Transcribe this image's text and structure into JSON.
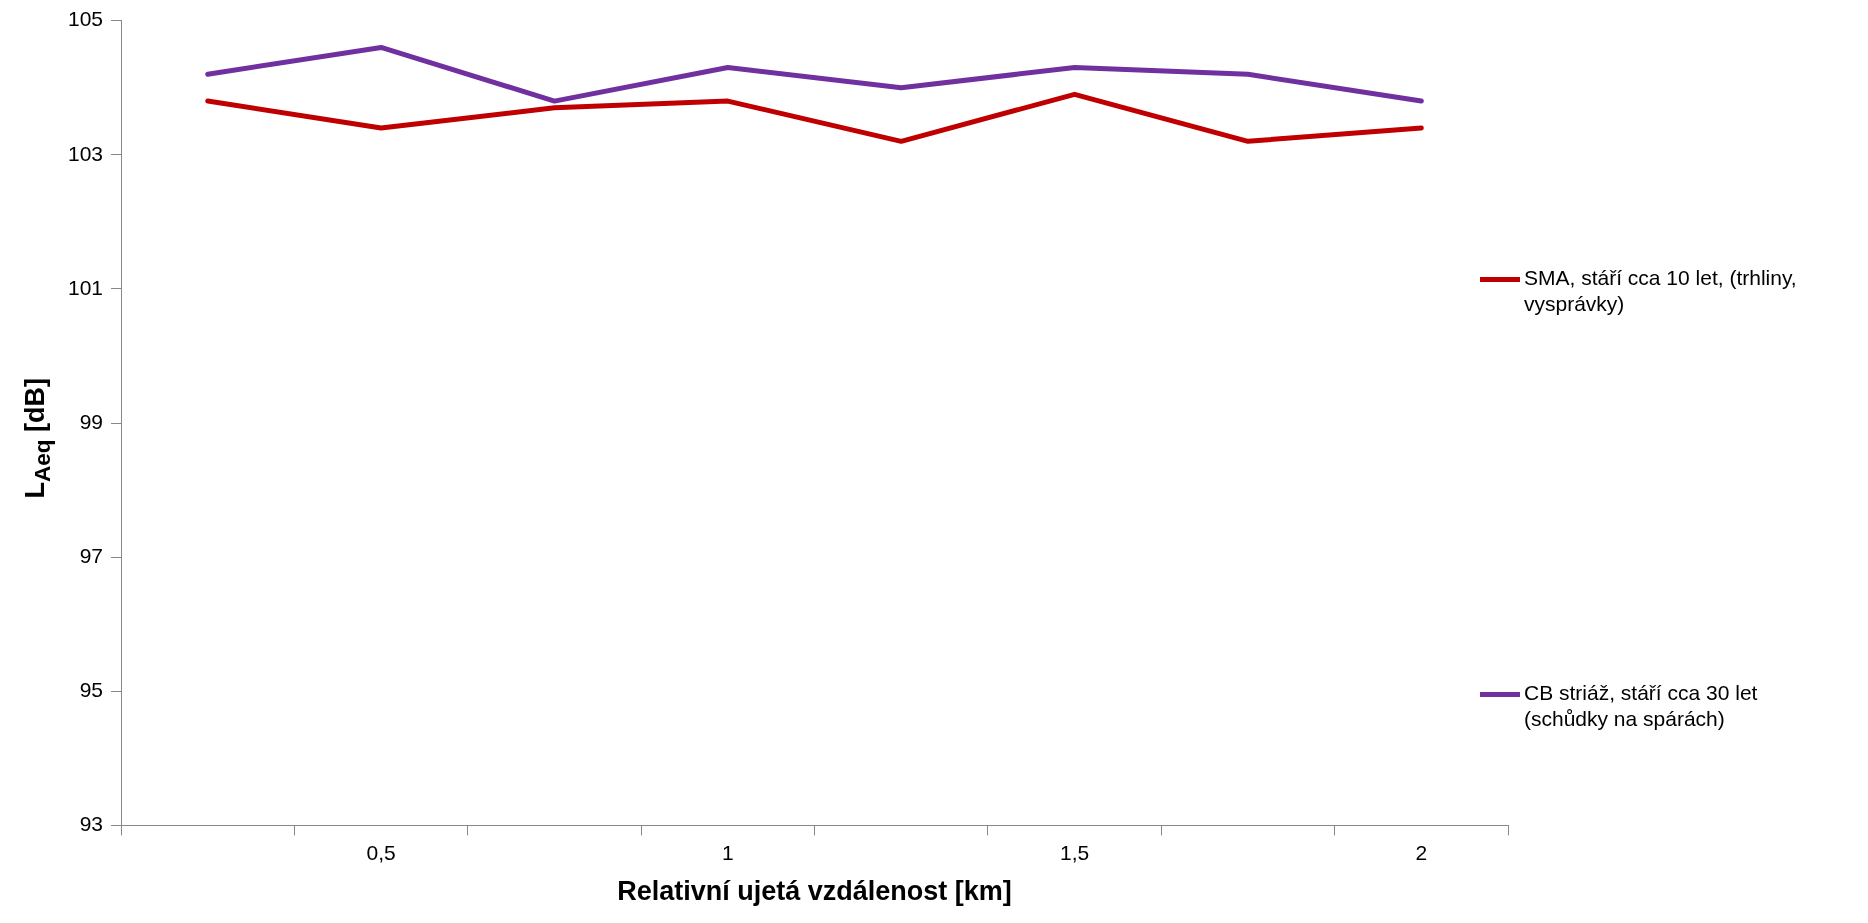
{
  "chart_data": {
    "type": "line",
    "xlabel": "Relativní ujetá vzdálenost [km]",
    "ylabel": "L$_{Aeq}$ [dB]",
    "categories": [
      null,
      "0,5",
      null,
      "1",
      null,
      "1,5",
      null,
      "2"
    ],
    "series": [
      {
        "name": "SMA, stáří cca 10 let, (trhliny, vysprávky)",
        "color": "#c00000",
        "values": [
          103.8,
          103.4,
          103.7,
          103.8,
          103.2,
          103.9,
          103.2,
          103.4
        ]
      },
      {
        "name": "CB striáž, stáří cca 30 let (schůdky na spárách)",
        "color": "#7030a0",
        "values": [
          104.2,
          104.6,
          103.8,
          104.3,
          104.0,
          104.3,
          104.2,
          103.8
        ]
      }
    ],
    "ylim": [
      93,
      105
    ],
    "yticks": [
      93,
      95,
      97,
      99,
      101,
      103,
      105
    ],
    "grid": false,
    "legend": "right",
    "marker": "none",
    "line_style": "solid"
  }
}
